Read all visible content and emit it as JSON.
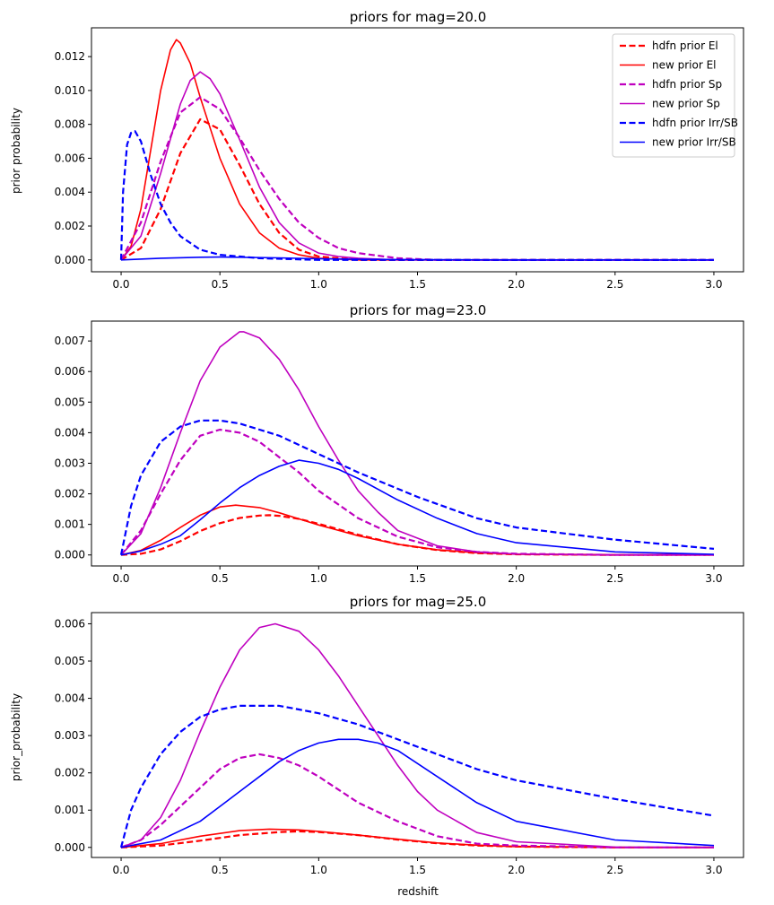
{
  "figure": {
    "panels": [
      {
        "title": "priors for mag=20.0",
        "ylabel": "prior probability",
        "xlabel": ""
      },
      {
        "title": "priors for mag=23.0",
        "ylabel": "",
        "xlabel": ""
      },
      {
        "title": "priors for mag=25.0",
        "ylabel": "prior_probability",
        "xlabel": "redshift"
      }
    ],
    "legend": {
      "placement": "top-right",
      "panel": 0
    }
  },
  "chart_data": [
    {
      "type": "line",
      "title": "priors for mag=20.0",
      "xlabel": "",
      "ylabel": "prior probability",
      "xlim": [
        -0.15,
        3.15
      ],
      "ylim": [
        -0.0007,
        0.0137
      ],
      "xticks": [
        "0.0",
        "0.5",
        "1.0",
        "1.5",
        "2.0",
        "2.5",
        "3.0"
      ],
      "yticks": [
        "0.000",
        "0.002",
        "0.004",
        "0.006",
        "0.008",
        "0.010",
        "0.012"
      ],
      "legend": {
        "placement": "top-right"
      },
      "series": [
        {
          "name": "hdfn prior El",
          "color": "#ff0000",
          "style": "dashed",
          "x": [
            0,
            0.1,
            0.2,
            0.3,
            0.4,
            0.5,
            0.6,
            0.7,
            0.8,
            0.9,
            1.0,
            1.2,
            1.5,
            2.0,
            2.5,
            3.0
          ],
          "y": [
            0,
            0.0007,
            0.003,
            0.0063,
            0.0083,
            0.0077,
            0.0056,
            0.0033,
            0.0016,
            0.0006,
            0.0002,
            0,
            0,
            0,
            0,
            0
          ]
        },
        {
          "name": "new prior El",
          "color": "#ff0000",
          "style": "solid",
          "x": [
            0,
            0.05,
            0.1,
            0.15,
            0.2,
            0.25,
            0.28,
            0.3,
            0.35,
            0.4,
            0.5,
            0.6,
            0.7,
            0.8,
            0.9,
            1.0,
            1.2,
            1.5,
            2.0,
            3.0
          ],
          "y": [
            0,
            0.0008,
            0.003,
            0.0065,
            0.01,
            0.0124,
            0.013,
            0.0128,
            0.0116,
            0.0096,
            0.006,
            0.0033,
            0.0016,
            0.0007,
            0.0003,
            0.0001,
            0,
            0,
            0,
            0
          ]
        },
        {
          "name": "hdfn prior Sp",
          "color": "#bf00bf",
          "style": "dashed",
          "x": [
            0,
            0.1,
            0.2,
            0.3,
            0.4,
            0.5,
            0.6,
            0.7,
            0.8,
            0.9,
            1.0,
            1.1,
            1.2,
            1.4,
            1.6,
            2.0,
            2.5,
            3.0
          ],
          "y": [
            0,
            0.0022,
            0.0058,
            0.0087,
            0.0096,
            0.0089,
            0.0072,
            0.0053,
            0.0036,
            0.0022,
            0.0013,
            0.0007,
            0.0004,
            0.0001,
            0,
            0,
            0,
            0
          ]
        },
        {
          "name": "new prior Sp",
          "color": "#bf00bf",
          "style": "solid",
          "x": [
            0,
            0.1,
            0.2,
            0.3,
            0.35,
            0.4,
            0.45,
            0.5,
            0.6,
            0.7,
            0.8,
            0.9,
            1.0,
            1.1,
            1.2,
            1.4,
            1.6,
            2.0,
            2.5,
            3.0
          ],
          "y": [
            0,
            0.0014,
            0.0051,
            0.0092,
            0.0106,
            0.0111,
            0.0107,
            0.0098,
            0.0071,
            0.0043,
            0.0022,
            0.001,
            0.0004,
            0.0002,
            0.0001,
            0,
            0,
            0,
            0,
            0
          ]
        },
        {
          "name": "hdfn prior Irr/SB",
          "color": "#0000ff",
          "style": "dashed",
          "x": [
            0,
            0.01,
            0.03,
            0.05,
            0.07,
            0.1,
            0.15,
            0.2,
            0.25,
            0.3,
            0.4,
            0.5,
            0.7,
            1.0,
            1.5,
            2.0,
            2.5,
            3.0
          ],
          "y": [
            0,
            0.004,
            0.0068,
            0.0075,
            0.0076,
            0.007,
            0.005,
            0.0033,
            0.0022,
            0.0014,
            0.0006,
            0.0003,
            0.0001,
            0,
            0,
            0,
            0,
            0
          ]
        },
        {
          "name": "new prior Irr/SB",
          "color": "#0000ff",
          "style": "solid",
          "x": [
            0,
            0.2,
            0.4,
            0.5,
            0.6,
            0.8,
            1.0,
            1.2,
            1.5,
            2.0,
            3.0
          ],
          "y": [
            0,
            0.0001,
            0.00016,
            0.00017,
            0.00016,
            0.00012,
            7e-05,
            4e-05,
            1e-05,
            0,
            0
          ]
        }
      ]
    },
    {
      "type": "line",
      "title": "priors for mag=23.0",
      "xlabel": "",
      "ylabel": "",
      "xlim": [
        -0.15,
        3.15
      ],
      "ylim": [
        -0.00036,
        0.00765
      ],
      "xticks": [
        "0.0",
        "0.5",
        "1.0",
        "1.5",
        "2.0",
        "2.5",
        "3.0"
      ],
      "yticks": [
        "0.000",
        "0.001",
        "0.002",
        "0.003",
        "0.004",
        "0.005",
        "0.006",
        "0.007"
      ],
      "series": [
        {
          "name": "hdfn prior El",
          "color": "#ff0000",
          "style": "dashed",
          "x": [
            0,
            0.1,
            0.2,
            0.3,
            0.4,
            0.5,
            0.6,
            0.7,
            0.75,
            0.8,
            0.9,
            1.0,
            1.2,
            1.4,
            1.6,
            1.8,
            2.0,
            2.5,
            3.0
          ],
          "y": [
            0,
            4e-05,
            0.00018,
            0.00045,
            0.00078,
            0.00104,
            0.00121,
            0.00129,
            0.0013,
            0.00128,
            0.00118,
            0.00102,
            0.00066,
            0.00035,
            0.00016,
            6e-05,
            2e-05,
            0,
            0
          ]
        },
        {
          "name": "new prior El",
          "color": "#ff0000",
          "style": "solid",
          "x": [
            0,
            0.1,
            0.2,
            0.3,
            0.4,
            0.5,
            0.58,
            0.7,
            0.8,
            0.9,
            1.0,
            1.2,
            1.4,
            1.6,
            1.8,
            2.0,
            2.5,
            3.0
          ],
          "y": [
            0,
            0.00015,
            0.00048,
            0.0009,
            0.0013,
            0.00157,
            0.00163,
            0.00155,
            0.00138,
            0.00118,
            0.00098,
            0.00063,
            0.00035,
            0.00017,
            7e-05,
            2e-05,
            0,
            0
          ]
        },
        {
          "name": "hdfn prior Sp",
          "color": "#bf00bf",
          "style": "dashed",
          "x": [
            0,
            0.1,
            0.2,
            0.3,
            0.4,
            0.5,
            0.6,
            0.7,
            0.8,
            0.9,
            1.0,
            1.2,
            1.4,
            1.6,
            1.8,
            2.0,
            2.5,
            3.0
          ],
          "y": [
            0,
            0.0008,
            0.002,
            0.0031,
            0.0039,
            0.0041,
            0.004,
            0.0037,
            0.0032,
            0.0027,
            0.0021,
            0.0012,
            0.0006,
            0.00025,
            0.0001,
            4e-05,
            0,
            0
          ]
        },
        {
          "name": "new prior Sp",
          "color": "#bf00bf",
          "style": "solid",
          "x": [
            0,
            0.1,
            0.2,
            0.3,
            0.4,
            0.5,
            0.6,
            0.62,
            0.7,
            0.8,
            0.9,
            1.0,
            1.1,
            1.2,
            1.3,
            1.4,
            1.6,
            1.8,
            2.0,
            2.5,
            3.0
          ],
          "y": [
            0,
            0.0007,
            0.0022,
            0.004,
            0.0057,
            0.0068,
            0.0073,
            0.0073,
            0.0071,
            0.0064,
            0.0054,
            0.0042,
            0.0031,
            0.0021,
            0.0014,
            0.0008,
            0.0003,
            0.0001,
            3e-05,
            0,
            0
          ]
        },
        {
          "name": "hdfn prior Irr/SB",
          "color": "#0000ff",
          "style": "dashed",
          "x": [
            0,
            0.05,
            0.1,
            0.2,
            0.3,
            0.4,
            0.45,
            0.5,
            0.6,
            0.7,
            0.8,
            1.0,
            1.2,
            1.5,
            1.8,
            2.0,
            2.5,
            3.0
          ],
          "y": [
            0,
            0.0016,
            0.0026,
            0.0037,
            0.0042,
            0.0044,
            0.0044,
            0.0044,
            0.0043,
            0.0041,
            0.0039,
            0.0033,
            0.0027,
            0.0019,
            0.0012,
            0.0009,
            0.0005,
            0.0002
          ]
        },
        {
          "name": "new prior Irr/SB",
          "color": "#0000ff",
          "style": "solid",
          "x": [
            0,
            0.1,
            0.2,
            0.3,
            0.4,
            0.5,
            0.6,
            0.7,
            0.8,
            0.9,
            1.0,
            1.1,
            1.2,
            1.4,
            1.6,
            1.8,
            2.0,
            2.5,
            3.0
          ],
          "y": [
            0,
            0.00013,
            0.00035,
            0.00063,
            0.00115,
            0.0017,
            0.0022,
            0.0026,
            0.0029,
            0.0031,
            0.003,
            0.0028,
            0.0025,
            0.0018,
            0.0012,
            0.0007,
            0.0004,
            0.0001,
            2e-05
          ]
        }
      ]
    },
    {
      "type": "line",
      "title": "priors for mag=25.0",
      "xlabel": "redshift",
      "ylabel": "prior_probability",
      "xlim": [
        -0.15,
        3.15
      ],
      "ylim": [
        -0.00027,
        0.0063
      ],
      "xticks": [
        "0.0",
        "0.5",
        "1.0",
        "1.5",
        "2.0",
        "2.5",
        "3.0"
      ],
      "yticks": [
        "0.000",
        "0.001",
        "0.002",
        "0.003",
        "0.004",
        "0.005",
        "0.006"
      ],
      "series": [
        {
          "name": "hdfn prior El",
          "color": "#ff0000",
          "style": "dashed",
          "x": [
            0,
            0.2,
            0.4,
            0.6,
            0.8,
            0.9,
            1.0,
            1.2,
            1.4,
            1.6,
            1.8,
            2.0,
            2.5,
            3.0
          ],
          "y": [
            0,
            5e-05,
            0.00018,
            0.00033,
            0.00041,
            0.00043,
            0.00041,
            0.00033,
            0.00021,
            0.00011,
            5e-05,
            2e-05,
            0,
            0
          ]
        },
        {
          "name": "new prior El",
          "color": "#ff0000",
          "style": "solid",
          "x": [
            0,
            0.2,
            0.4,
            0.6,
            0.75,
            0.9,
            1.0,
            1.2,
            1.4,
            1.6,
            1.8,
            2.0,
            2.5,
            3.0
          ],
          "y": [
            0,
            0.0001,
            0.0003,
            0.00045,
            0.00049,
            0.00047,
            0.00043,
            0.00033,
            0.00022,
            0.00012,
            6e-05,
            2e-05,
            0,
            0
          ]
        },
        {
          "name": "hdfn prior Sp",
          "color": "#bf00bf",
          "style": "dashed",
          "x": [
            0,
            0.1,
            0.2,
            0.3,
            0.4,
            0.5,
            0.6,
            0.7,
            0.8,
            0.9,
            1.0,
            1.2,
            1.4,
            1.6,
            1.8,
            2.0,
            2.5,
            3.0
          ],
          "y": [
            0,
            0.0002,
            0.0006,
            0.0011,
            0.0016,
            0.0021,
            0.0024,
            0.0025,
            0.0024,
            0.0022,
            0.0019,
            0.0012,
            0.0007,
            0.0003,
            0.0001,
            5e-05,
            0,
            0
          ]
        },
        {
          "name": "new prior Sp",
          "color": "#bf00bf",
          "style": "solid",
          "x": [
            0,
            0.1,
            0.2,
            0.3,
            0.4,
            0.5,
            0.6,
            0.7,
            0.78,
            0.9,
            1.0,
            1.1,
            1.2,
            1.3,
            1.4,
            1.5,
            1.6,
            1.8,
            2.0,
            2.5,
            3.0
          ],
          "y": [
            0,
            0.0002,
            0.0008,
            0.0018,
            0.0031,
            0.0043,
            0.0053,
            0.0059,
            0.006,
            0.0058,
            0.0053,
            0.0046,
            0.0038,
            0.003,
            0.0022,
            0.0015,
            0.001,
            0.0004,
            0.00015,
            1e-05,
            0
          ]
        },
        {
          "name": "hdfn prior Irr/SB",
          "color": "#0000ff",
          "style": "dashed",
          "x": [
            0,
            0.05,
            0.1,
            0.2,
            0.3,
            0.4,
            0.5,
            0.6,
            0.7,
            0.8,
            0.9,
            1.0,
            1.2,
            1.5,
            1.8,
            2.0,
            2.5,
            3.0
          ],
          "y": [
            0,
            0.001,
            0.0016,
            0.0025,
            0.0031,
            0.0035,
            0.0037,
            0.0038,
            0.0038,
            0.0038,
            0.0037,
            0.0036,
            0.0033,
            0.0027,
            0.0021,
            0.0018,
            0.0013,
            0.00085
          ]
        },
        {
          "name": "new prior Irr/SB",
          "color": "#0000ff",
          "style": "solid",
          "x": [
            0,
            0.2,
            0.4,
            0.5,
            0.6,
            0.7,
            0.8,
            0.9,
            1.0,
            1.1,
            1.2,
            1.3,
            1.4,
            1.6,
            1.8,
            2.0,
            2.5,
            3.0
          ],
          "y": [
            0,
            0.0002,
            0.0007,
            0.0011,
            0.0015,
            0.0019,
            0.0023,
            0.0026,
            0.0028,
            0.0029,
            0.0029,
            0.0028,
            0.0026,
            0.0019,
            0.0012,
            0.0007,
            0.0002,
            5e-05
          ]
        }
      ]
    }
  ]
}
